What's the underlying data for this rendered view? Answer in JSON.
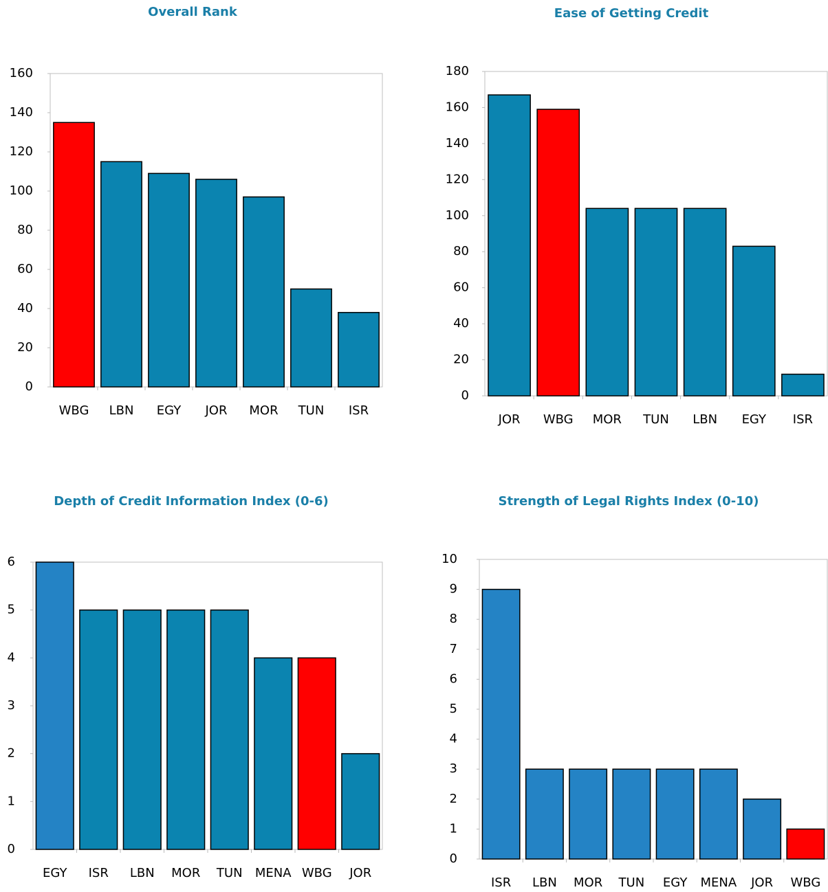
{
  "chart_data": [
    {
      "type": "bar",
      "title": "Overall Rank",
      "categories": [
        "WBG",
        "LBN",
        "EGY",
        "JOR",
        "MOR",
        "TUN",
        "ISR"
      ],
      "values": [
        135,
        115,
        109,
        106,
        97,
        50,
        38
      ],
      "colors": [
        "#ff0000",
        "#0b84b0",
        "#0b84b0",
        "#0b84b0",
        "#0b84b0",
        "#0b84b0",
        "#0b84b0"
      ],
      "ylim": [
        0,
        160
      ],
      "yticks": [
        0,
        20,
        40,
        60,
        80,
        100,
        120,
        140,
        160
      ]
    },
    {
      "type": "bar",
      "title": "Ease of Getting Credit",
      "categories": [
        "JOR",
        "WBG",
        "MOR",
        "TUN",
        "LBN",
        "EGY",
        "ISR"
      ],
      "values": [
        167,
        159,
        104,
        104,
        104,
        83,
        12
      ],
      "colors": [
        "#0b84b0",
        "#ff0000",
        "#0b84b0",
        "#0b84b0",
        "#0b84b0",
        "#0b84b0",
        "#0b84b0"
      ],
      "ylim": [
        0,
        180
      ],
      "yticks": [
        0,
        20,
        40,
        60,
        80,
        100,
        120,
        140,
        160,
        180
      ]
    },
    {
      "type": "bar",
      "title": "Depth of Credit Information Index (0-6)",
      "categories": [
        "EGY",
        "ISR",
        "LBN",
        "MOR",
        "TUN",
        "MENA",
        "WBG",
        "JOR"
      ],
      "values": [
        6,
        5,
        5,
        5,
        5,
        4,
        4,
        2
      ],
      "colors": [
        "#2483c5",
        "#0b84b0",
        "#0b84b0",
        "#0b84b0",
        "#0b84b0",
        "#0b84b0",
        "#ff0000",
        "#0b84b0"
      ],
      "ylim": [
        0,
        6
      ],
      "yticks": [
        0,
        1,
        2,
        3,
        4,
        5,
        6
      ]
    },
    {
      "type": "bar",
      "title": "Strength of Legal Rights Index (0-10)",
      "categories": [
        "ISR",
        "LBN",
        "MOR",
        "TUN",
        "EGY",
        "MENA",
        "JOR",
        "WBG"
      ],
      "values": [
        9,
        3,
        3,
        3,
        3,
        3,
        2,
        1
      ],
      "colors": [
        "#2483c5",
        "#2483c5",
        "#2483c5",
        "#2483c5",
        "#2483c5",
        "#2483c5",
        "#2483c5",
        "#ff0000"
      ],
      "ylim": [
        0,
        10
      ],
      "yticks": [
        0,
        1,
        2,
        3,
        4,
        5,
        6,
        7,
        8,
        9,
        10
      ]
    }
  ]
}
